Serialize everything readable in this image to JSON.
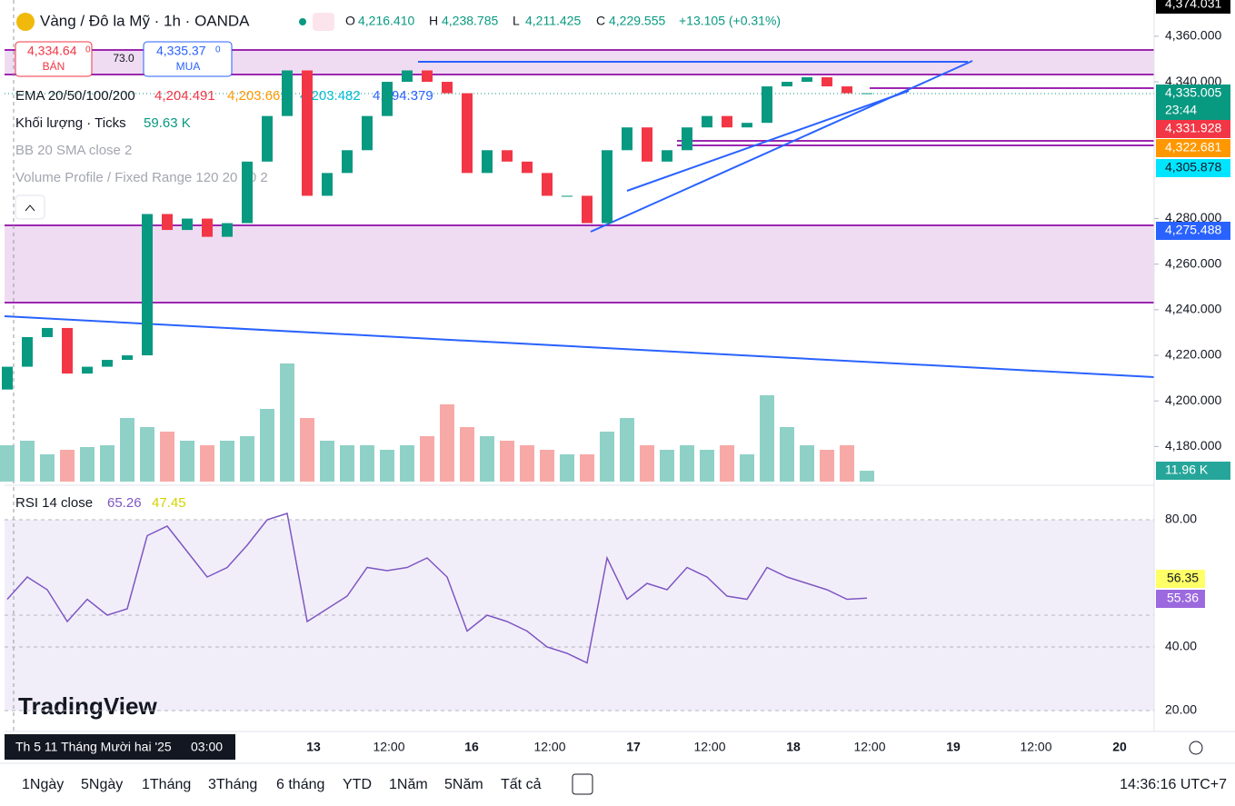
{
  "header": {
    "symbol": "Vàng / Đô la Mỹ · 1h · OANDA",
    "ohlc": [
      {
        "key": "O",
        "value": "4,216.410"
      },
      {
        "key": "H",
        "value": "4,238.785"
      },
      {
        "key": "L",
        "value": "4,211.425"
      },
      {
        "key": "C",
        "value": "4,229.555"
      }
    ],
    "change": "+13.105 (+0.31%)"
  },
  "trade": {
    "sell_price": "4,334.64",
    "sell_sup": "0",
    "sell_label": "BÁN",
    "spread": "73.0",
    "buy_price": "4,335.37",
    "buy_sup": "0",
    "buy_label": "MUA"
  },
  "legend": {
    "ema": {
      "label": "EMA 20/50/100/200",
      "values": [
        {
          "text": "4,204.491",
          "color": "#f23645"
        },
        {
          "text": "4,203.661",
          "color": "#ff9800"
        },
        {
          "text": "4,203.482",
          "color": "#00bcd4"
        },
        {
          "text": "4,194.379",
          "color": "#2962ff"
        }
      ]
    },
    "volume": {
      "label": "Khối lượng · Ticks",
      "value": "59.63 K"
    },
    "bb": "BB 20 SMA close 2",
    "vp": "Volume Profile / Fixed Range 120 20 70 2",
    "rsi": {
      "label": "RSI 14 close",
      "value": "65.26",
      "ma": "47.45"
    }
  },
  "chart_data": {
    "type": "candlestick",
    "opens": [
      4205,
      4215,
      4228,
      4232,
      4212,
      4215,
      4218,
      4220,
      4282,
      4275,
      4280,
      4272,
      4278,
      4305,
      4325,
      4345,
      4290,
      4300,
      4310,
      4325,
      4340,
      4345,
      4340,
      4335,
      4300,
      4310,
      4305,
      4300,
      4290,
      4290,
      4278,
      4310,
      4320,
      4305,
      4310,
      4320,
      4325,
      4320,
      4322,
      4338,
      4340,
      4342,
      4338,
      4335
    ],
    "closes": [
      4215,
      4228,
      4232,
      4212,
      4215,
      4218,
      4220,
      4282,
      4275,
      4280,
      4272,
      4278,
      4305,
      4325,
      4345,
      4290,
      4300,
      4310,
      4325,
      4340,
      4345,
      4340,
      4335,
      4300,
      4310,
      4305,
      4300,
      4290,
      4290,
      4278,
      4310,
      4320,
      4305,
      4310,
      4320,
      4325,
      4320,
      4322,
      4338,
      4340,
      4342,
      4338,
      4335,
      4335.005
    ],
    "ylim": [
      4164.6,
      4375.9
    ],
    "yticks": [
      {
        "value": 4360,
        "label": "4,360.000"
      },
      {
        "value": 4340,
        "label": "4,340.000"
      },
      {
        "value": 4280,
        "label": "4,280.000"
      },
      {
        "value": 4260,
        "label": "4,260.000"
      },
      {
        "value": 4240,
        "label": "4,240.000"
      },
      {
        "value": 4220,
        "label": "4,220.000"
      },
      {
        "value": 4200,
        "label": "4,200.000"
      },
      {
        "value": 4180,
        "label": "4,180.000"
      }
    ],
    "volume": [
      40,
      45,
      30,
      35,
      38,
      40,
      70,
      60,
      55,
      45,
      40,
      45,
      50,
      80,
      130,
      70,
      45,
      40,
      40,
      35,
      40,
      50,
      85,
      60,
      50,
      45,
      40,
      35,
      30,
      30,
      55,
      70,
      40,
      35,
      40,
      35,
      40,
      30,
      95,
      60,
      40,
      35,
      40,
      11.96
    ],
    "rsi": [
      55,
      62,
      58,
      48,
      55,
      50,
      52,
      75,
      78,
      70,
      62,
      65,
      72,
      80,
      82,
      48,
      52,
      56,
      65,
      64,
      65,
      68,
      62,
      45,
      50,
      48,
      45,
      40,
      38,
      35,
      68,
      55,
      60,
      58,
      65,
      62,
      56,
      55,
      65,
      62,
      60,
      58,
      55,
      55.36
    ],
    "rsi_ylim": [
      14.86,
      89.14
    ],
    "rsi_yticks": [
      {
        "value": 80,
        "label": "80.00"
      },
      {
        "value": 40,
        "label": "40.00"
      },
      {
        "value": 20,
        "label": "20.00"
      }
    ],
    "x_labels": [
      "13",
      "12:00",
      "16",
      "12:00",
      "17",
      "12:00",
      "18",
      "12:00",
      "19",
      "12:00",
      "20"
    ],
    "price_tags": [
      {
        "text": "4,374.031",
        "color": "#000000"
      },
      {
        "text": "4,335.005",
        "color": "#089981"
      },
      {
        "text": "23:44",
        "color": "#089981"
      },
      {
        "text": "4,331.928",
        "color": "#f23645"
      },
      {
        "text": "4,322.681",
        "color": "#ff9800"
      },
      {
        "text": "4,305.878",
        "color": "#00e5ff"
      },
      {
        "text": "4,275.488",
        "color": "#2962ff"
      },
      {
        "text": "11.96 K",
        "color": "#26a69a"
      }
    ],
    "rsi_tags": [
      {
        "text": "56.35",
        "color": "#ffff66"
      },
      {
        "text": "55.36",
        "color": "#9c6ade"
      }
    ]
  },
  "footer": {
    "ranges": [
      "1Ngày",
      "5Ngày",
      "1Tháng",
      "3Tháng",
      "6 tháng",
      "YTD",
      "1Năm",
      "5Năm",
      "Tất cả"
    ],
    "time": "14:36:16 UTC+7",
    "cursor_date": "Th 5 11 Tháng Mười hai '25",
    "cursor_time": "03:00",
    "brand": "TradingView"
  }
}
